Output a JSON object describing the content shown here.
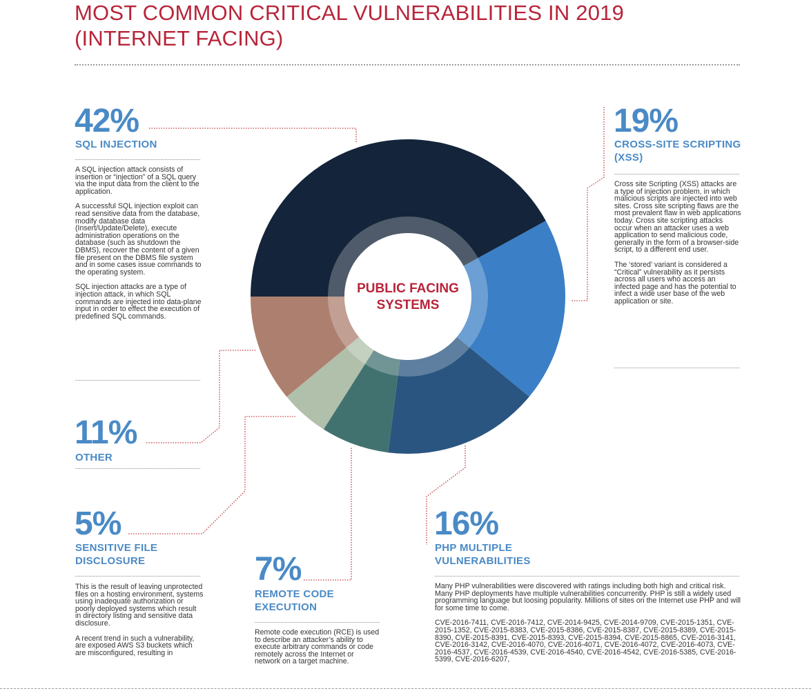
{
  "title_line1": "MOST COMMON CRITICAL VULNERABILITIES IN 2019",
  "title_line2": "(INTERNET FACING)",
  "center_line1": "PUBLIC FACING",
  "center_line2": "SYSTEMS",
  "colors": {
    "title": "#b8243a",
    "label": "#4a8ac6",
    "sql": "#14243a",
    "xss": "#3b7fc6",
    "php": "#2a5580",
    "rce": "#427270",
    "sensitive": "#b1c0ab",
    "other": "#ad7f6e"
  },
  "chart_data": {
    "type": "pie",
    "variant": "donut",
    "title": "MOST COMMON CRITICAL VULNERABILITIES IN 2019 (INTERNET FACING)",
    "center_label": "PUBLIC FACING SYSTEMS",
    "unit": "%",
    "slices": [
      {
        "key": "sql",
        "name": "SQL INJECTION",
        "value": 42
      },
      {
        "key": "xss",
        "name": "CROSS-SITE SCRIPTING (XSS)",
        "value": 19
      },
      {
        "key": "php",
        "name": "PHP MULTIPLE VULNERABILITIES",
        "value": 16
      },
      {
        "key": "rce",
        "name": "REMOTE CODE EXECUTION",
        "value": 7
      },
      {
        "key": "sensitive",
        "name": "SENSITIVE FILE DISCLOSURE",
        "value": 5
      },
      {
        "key": "other",
        "name": "OTHER",
        "value": 11
      }
    ]
  },
  "sections": {
    "sql": {
      "pct": "42%",
      "label": "SQL INJECTION",
      "paragraphs": [
        "A SQL injection attack consists of insertion or “injection” of a SQL query via the input data from the client to the application.",
        "A successful SQL injection exploit can read sensitive data from the database, modify database data (Insert/Update/Delete), execute administration operations on the database (such as shutdown the DBMS), recover the content of a given file present on the DBMS file system and in some cases issue commands to the operating system.",
        "SQL injection attacks are a type of injection attack, in which SQL commands are injected into data-plane input in order to effect the execution of predefined SQL commands."
      ]
    },
    "xss": {
      "pct": "19%",
      "label_line1": "CROSS-SITE SCRIPTING",
      "label_line2": "(XSS)",
      "paragraphs": [
        "Cross site Scripting (XSS) attacks are a type of injection problem, in which malicious scripts are injected into web sites. Cross site scripting flaws are the most prevalent flaw in web applications today. Cross site scripting attacks occur when an attacker uses a web application to send malicious code, generally in the form of a browser-side script, to a different end user.",
        "The ‘stored’ variant is considered a “Critical” vulnerability as it persists across all users who access an infected page and has the potential to infect a wide user base of the web application or site."
      ]
    },
    "other": {
      "pct": "11%",
      "label": "OTHER"
    },
    "sensitive": {
      "pct": "5%",
      "label_line1": "SENSITIVE FILE",
      "label_line2": "DISCLOSURE",
      "paragraphs": [
        "This is the result of leaving unprotected files on a hosting environment, systems using inadequate authorization or poorly deployed systems which result in directory listing and sensitive data disclosure.",
        "A recent trend in such a vulnerability, are exposed AWS S3 buckets which are misconfigured, resulting in"
      ]
    },
    "rce": {
      "pct": "7%",
      "label_line1": "REMOTE CODE",
      "label_line2": "EXECUTION",
      "paragraphs": [
        "Remote code execution (RCE) is used to describe an attacker’s ability to execute arbitrary commands or code remotely across the Internet or network on a target machine."
      ]
    },
    "php": {
      "pct": "16%",
      "label_line1": "PHP MULTIPLE",
      "label_line2": "VULNERABILITIES",
      "intro": "Many PHP vulnerabilities were discovered with ratings including both high and critical risk. Many PHP deployments have multiple vulnerabilities concurrently. PHP is still a widely used programming language but loosing popularity. Millions of sites on the Internet use PHP and will for some time to come.",
      "cves": "CVE-2016-7411, CVE-2016-7412, CVE-2014-9425, CVE-2014-9709, CVE-2015-1351, CVE-2015-1352, CVE-2015-8383, CVE-2015-8386, CVE-2015-8387, CVE-2015-8389, CVE-2015-8390, CVE-2015-8391, CVE-2015-8393, CVE-2015-8394, CVE-2015-8865, CVE-2016-3141, CVE-2016-3142, CVE-2016-4070, CVE-2016-4071, CVE-2016-4072, CVE-2016-4073, CVE-2016-4537, CVE-2016-4539, CVE-2016-4540, CVE-2016-4542, CVE-2016-5385, CVE-2016-5399, CVE-2016-6207,"
    }
  }
}
